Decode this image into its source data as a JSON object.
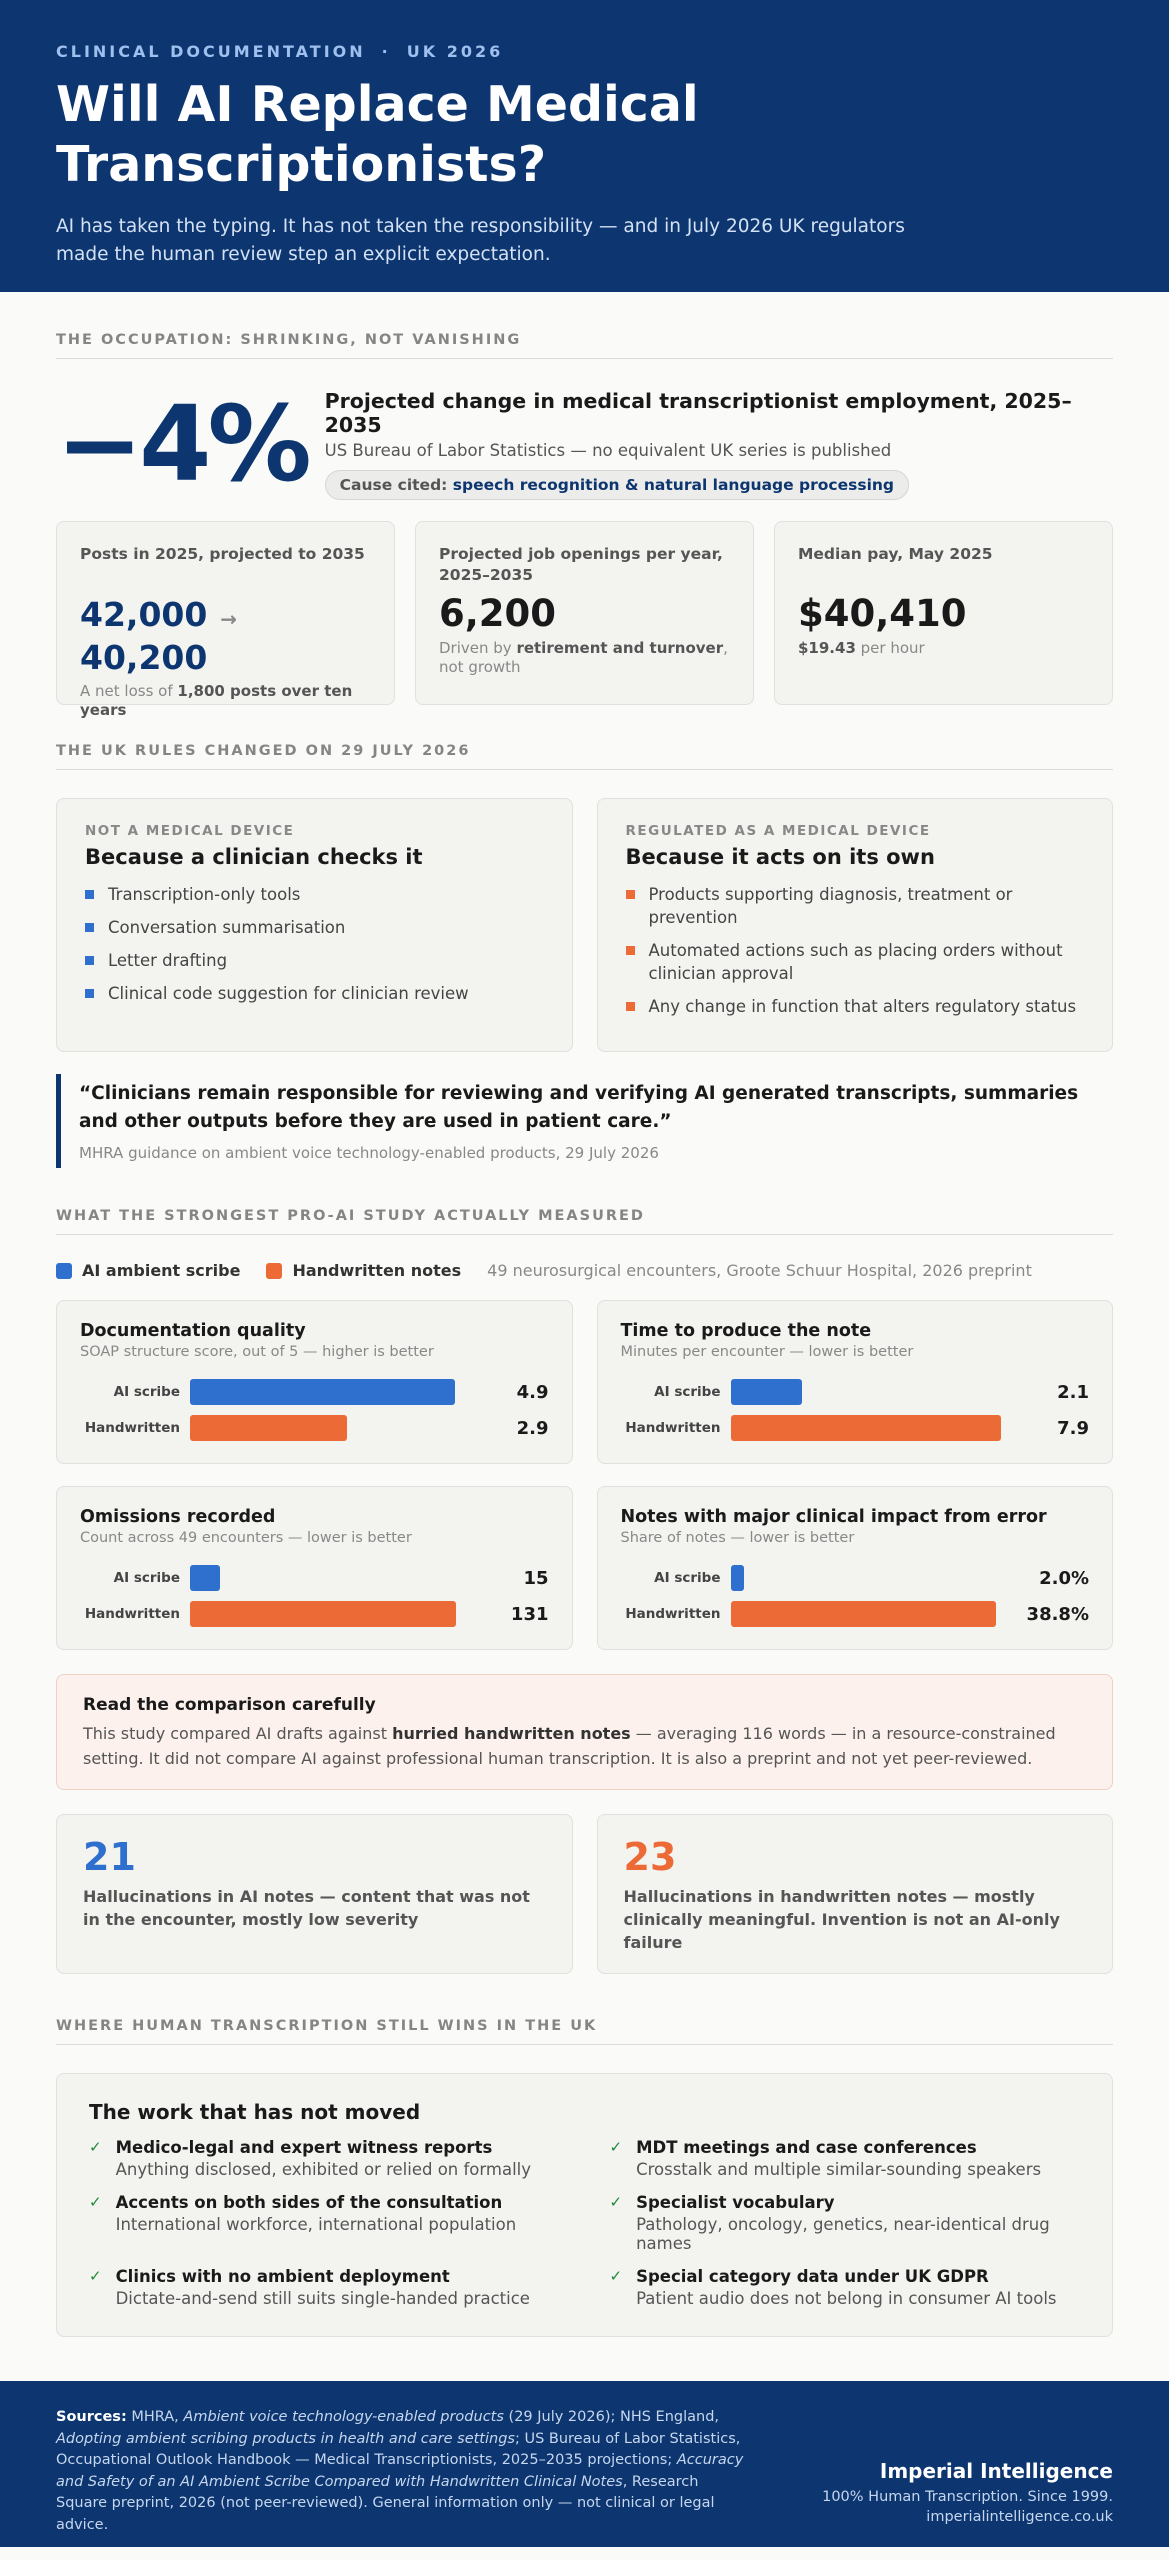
{
  "header": {
    "kicker_left": "CLINICAL DOCUMENTATION",
    "kicker_sep": "·",
    "kicker_right": "UK 2026",
    "title": "Will AI Replace Medical Transcriptionists?",
    "subtitle": "AI has taken the typing. It has not taken the responsibility — and in July 2026 UK regulators made the human review step an explicit expectation."
  },
  "occupation": {
    "section": "THE OCCUPATION: SHRINKING, NOT VANISHING",
    "big_stat": "−4%",
    "headline": "Projected change in medical transcriptionist employment, 2025–2035",
    "source": "US Bureau of Labor Statistics — no equivalent UK series is published",
    "cause_label": "Cause cited:",
    "cause_value": "speech recognition & natural language processing",
    "cards": [
      {
        "label": "Posts in 2025, projected to 2035",
        "from": "42,000",
        "arrow": "→",
        "to": "40,200",
        "note_pre": "A net loss of ",
        "note_bold": "1,800 posts over ten years",
        "note_post": ""
      },
      {
        "label": "Projected job openings per year, 2025–2035",
        "value": "6,200",
        "note_pre": "Driven by ",
        "note_bold": "retirement and turnover",
        "note_post": ", not growth"
      },
      {
        "label": "Median pay, May 2025",
        "value": "$40,410",
        "note_bold": "$19.43",
        "note_post": " per hour"
      }
    ]
  },
  "rules": {
    "section": "THE UK RULES CHANGED ON 29 JULY 2026",
    "left": {
      "kicker": "NOT A MEDICAL DEVICE",
      "title": "Because a clinician checks it",
      "items": [
        "Transcription-only tools",
        "Conversation summarisation",
        "Letter drafting",
        "Clinical code suggestion for clinician review"
      ]
    },
    "right": {
      "kicker": "REGULATED AS A MEDICAL DEVICE",
      "title": "Because it acts on its own",
      "items": [
        "Products supporting diagnosis, treatment or prevention",
        "Automated actions such as placing orders without clinician approval",
        "Any change in function that alters regulatory status"
      ]
    },
    "quote": "“Clinicians remain responsible for reviewing and verifying AI generated transcripts, summaries and other outputs before they are used in patient care.”",
    "quote_cite": "MHRA guidance on ambient voice technology-enabled products, 29 July 2026"
  },
  "study": {
    "section": "WHAT THE STRONGEST PRO-AI STUDY ACTUALLY MEASURED",
    "legend_ai": "AI ambient scribe",
    "legend_hand": "Handwritten notes",
    "context": "49 neurosurgical encounters, Groote Schuur Hospital, 2026 preprint",
    "colors": {
      "ai": "#2f6fcd",
      "hand": "#ec6a35"
    },
    "caution_title": "Read the comparison carefully",
    "caution_pre": "This study compared AI drafts against ",
    "caution_bold": "hurried handwritten notes",
    "caution_post": " — averaging 116 words — in a resource-constrained setting. It did not compare AI against professional human transcription. It is also a preprint and not yet peer-reviewed.",
    "hallucinations": [
      {
        "value": "21",
        "desc": "Hallucinations in AI notes — content that was not in the encounter, mostly low severity"
      },
      {
        "value": "23",
        "desc": "Hallucinations in handwritten notes — mostly clinically meaningful. Invention is not an AI-only failure"
      }
    ]
  },
  "chart_data": [
    {
      "type": "bar",
      "title": "Documentation quality",
      "subtitle": "SOAP structure score, out of 5 — higher is better",
      "categories": [
        "AI scribe",
        "Handwritten"
      ],
      "values": [
        4.9,
        2.9
      ],
      "labels": [
        "4.9",
        "2.9"
      ],
      "xlim": [
        0,
        5
      ]
    },
    {
      "type": "bar",
      "title": "Time to produce the note",
      "subtitle": "Minutes per encounter — lower is better",
      "categories": [
        "AI scribe",
        "Handwritten"
      ],
      "values": [
        2.1,
        7.9
      ],
      "labels": [
        "2.1",
        "7.9"
      ],
      "xlim": [
        0,
        7.9
      ]
    },
    {
      "type": "bar",
      "title": "Omissions recorded",
      "subtitle": "Count across 49 encounters — lower is better",
      "categories": [
        "AI scribe",
        "Handwritten"
      ],
      "values": [
        15,
        131
      ],
      "labels": [
        "15",
        "131"
      ],
      "xlim": [
        0,
        133
      ]
    },
    {
      "type": "bar",
      "title": "Notes with major clinical impact from error",
      "subtitle": "Share of notes — lower is better",
      "categories": [
        "AI scribe",
        "Handwritten"
      ],
      "values": [
        2.0,
        38.8
      ],
      "labels": [
        "2.0%",
        "38.8%"
      ],
      "xlim": [
        0,
        39.5
      ]
    }
  ],
  "human": {
    "section": "WHERE HUMAN TRANSCRIPTION STILL WINS IN THE UK",
    "title": "The work that has not moved",
    "check": "✓",
    "items": [
      {
        "t": "Medico-legal and expert witness reports",
        "d": "Anything disclosed, exhibited or relied on formally"
      },
      {
        "t": "MDT meetings and case conferences",
        "d": "Crosstalk and multiple similar-sounding speakers"
      },
      {
        "t": "Accents on both sides of the consultation",
        "d": "International workforce, international population"
      },
      {
        "t": "Specialist vocabulary",
        "d": "Pathology, oncology, genetics, near-identical drug names"
      },
      {
        "t": "Clinics with no ambient deployment",
        "d": "Dictate-and-send still suits single-handed practice"
      },
      {
        "t": "Special category data under UK GDPR",
        "d": "Patient audio does not belong in consumer AI tools"
      }
    ]
  },
  "footer": {
    "sources_label": "Sources:",
    "s1": " MHRA, ",
    "s2": "Ambient voice technology-enabled products",
    "s3": " (29 July 2026); NHS England, ",
    "s4": "Adopting ambient scribing products in health and care settings",
    "s5": "; US Bureau of Labor Statistics, Occupational Outlook Handbook — Medical Transcriptionists, 2025–2035 projections; ",
    "s6": "Accuracy and Safety of an AI Ambient Scribe Compared with Handwritten Clinical Notes",
    "s7": ", Research Square preprint, 2026 (not peer-reviewed). General information only — not clinical or legal advice.",
    "brand": "Imperial Intelligence",
    "tagline": "100% Human Transcription. Since 1999.",
    "url": "imperialintelligence.co.uk"
  }
}
